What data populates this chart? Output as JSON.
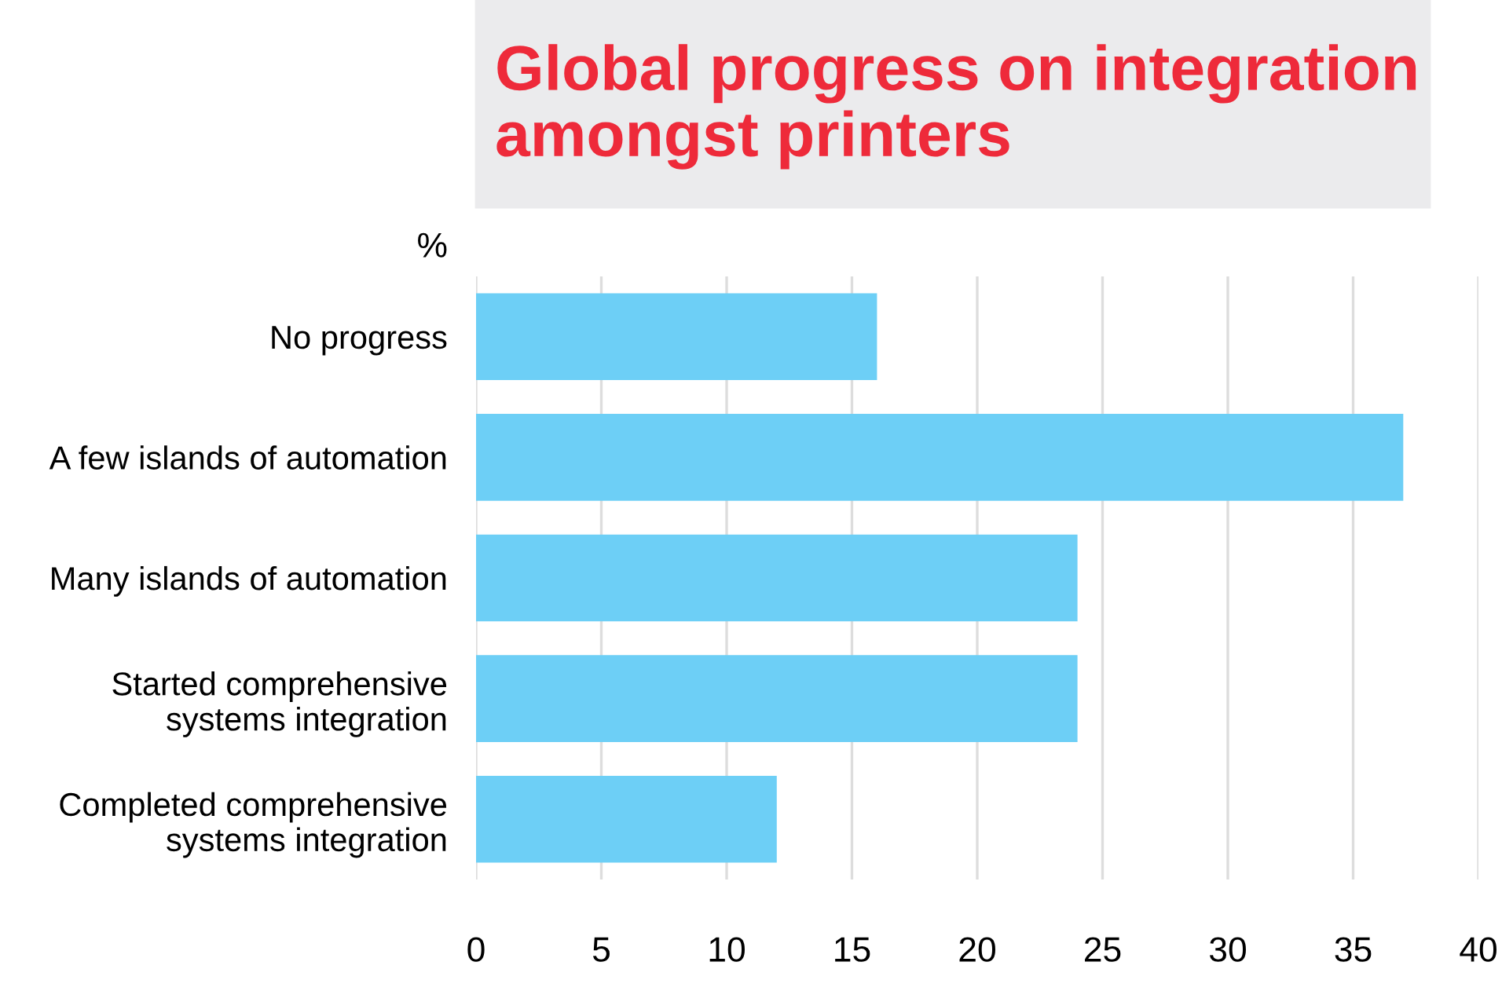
{
  "chart_data": {
    "type": "bar",
    "orientation": "horizontal",
    "title": "Global progress on integration amongst printers",
    "xlabel": "%",
    "categories": [
      "No progress",
      "A few islands of automation",
      "Many islands of automation",
      "Started comprehensive\nsystems integration",
      "Completed comprehensive\nsystems integration"
    ],
    "values": [
      16,
      37,
      24,
      24,
      12
    ],
    "color": "#6dcff6",
    "xlim": [
      0,
      40
    ],
    "xticks": [
      0,
      5,
      10,
      15,
      20,
      25,
      30,
      35,
      40
    ],
    "grid": "x"
  }
}
